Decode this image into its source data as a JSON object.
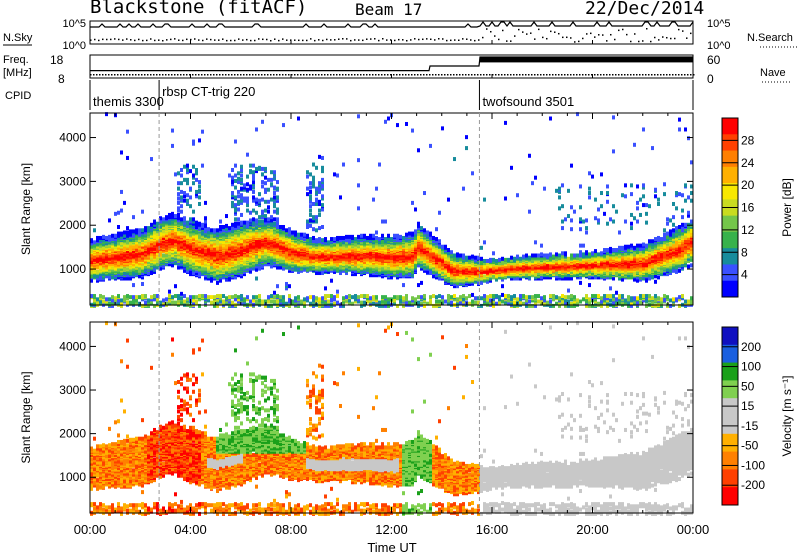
{
  "header": {
    "station": "Blackstone (fitACF)",
    "beam": "Beam 17",
    "date": "22/Dec/2014"
  },
  "top_panels": {
    "nsky_label": "N.Sky",
    "nsearch_label": "N.Search",
    "nsky_ticks": [
      "10^5",
      "10^0"
    ],
    "nsearch_ticks": [
      "10^5",
      "10^0"
    ],
    "freq_label_1": "Freq.",
    "freq_label_2": "[MHz]",
    "freq_ticks": [
      "18",
      "8"
    ],
    "nave_label": "Nave",
    "nave_ticks": [
      "60",
      "0"
    ],
    "cpid_label": "CPID",
    "cpid_entries": [
      {
        "label": "themis 3300",
        "start_h": 0.0
      },
      {
        "label": "rbsp CT-trig 220",
        "start_h": 2.75
      },
      {
        "label": "twofsound 3501",
        "start_h": 15.5
      }
    ]
  },
  "x_axis": {
    "label": "Time UT",
    "ticks": [
      "00:00",
      "04:00",
      "08:00",
      "12:00",
      "16:00",
      "20:00",
      "00:00"
    ],
    "range_hours": [
      0,
      24
    ]
  },
  "colors": {
    "power_scale": [
      "#0000ff",
      "#3a50ff",
      "#178c9c",
      "#38b24c",
      "#74c64a",
      "#c9dc20",
      "#f7e800",
      "#ffb000",
      "#ff7f00",
      "#ff4000",
      "#ff0000"
    ],
    "velocity_scale": [
      "#1010c0",
      "#1a5fe0",
      "#1aa01a",
      "#80d050",
      "#c8c8c8",
      "#c8c8c8",
      "#ffb000",
      "#ff8000",
      "#ff4000",
      "#ff0000"
    ]
  },
  "chart_data": [
    {
      "type": "heatmap",
      "title": "Power",
      "ylabel": "Slant Range [km]",
      "xlabel": "",
      "ylim": [
        180,
        4560
      ],
      "yticks": [
        1000,
        2000,
        3000,
        4000
      ],
      "colorbar": {
        "label": "Power [dB]",
        "ticks": [
          "28",
          "24",
          "20",
          "16",
          "12",
          "8",
          "4"
        ],
        "range": [
          0,
          30
        ]
      },
      "band_centre_km": [
        [
          0,
          1230
        ],
        [
          1,
          1300
        ],
        [
          2,
          1380
        ],
        [
          2.75,
          1600
        ],
        [
          3.3,
          1700
        ],
        [
          4,
          1500
        ],
        [
          5,
          1330
        ],
        [
          6,
          1480
        ],
        [
          7,
          1660
        ],
        [
          8,
          1420
        ],
        [
          9,
          1320
        ],
        [
          10,
          1330
        ],
        [
          11,
          1340
        ],
        [
          12,
          1300
        ],
        [
          12.8,
          1340
        ],
        [
          13,
          1550
        ],
        [
          14.4,
          1000
        ],
        [
          15.5,
          980
        ],
        [
          17,
          1060
        ],
        [
          18,
          1080
        ],
        [
          20,
          1120
        ],
        [
          22,
          1170
        ],
        [
          23.5,
          1500
        ],
        [
          24,
          1700
        ]
      ],
      "band_halfwidth_km": [
        [
          0,
          420
        ],
        [
          3,
          520
        ],
        [
          6,
          560
        ],
        [
          9,
          340
        ],
        [
          13,
          450
        ],
        [
          16,
          220
        ],
        [
          20,
          270
        ],
        [
          24,
          480
        ]
      ]
    },
    {
      "type": "heatmap",
      "title": "Velocity",
      "ylabel": "Slant Range [km]",
      "xlabel": "Time UT",
      "ylim": [
        180,
        4560
      ],
      "yticks": [
        1000,
        2000,
        3000,
        4000
      ],
      "colorbar": {
        "label": "Velocity [m s⁻¹]",
        "ticks": [
          "200",
          "100",
          "50",
          "15",
          "-15",
          "-50",
          "-100",
          "-200"
        ],
        "range": [
          -250,
          250
        ]
      },
      "ground_scatter_color": "#c8c8c8"
    }
  ]
}
